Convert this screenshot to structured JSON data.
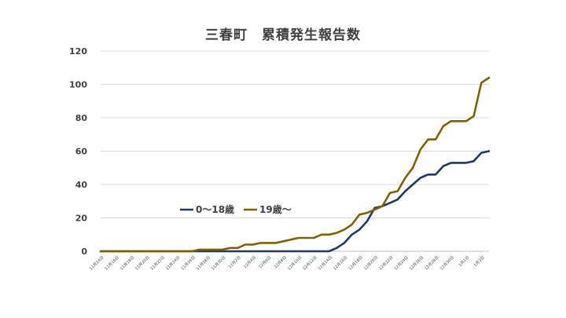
{
  "chart_data": {
    "type": "line",
    "title": "三春町　累積発生報告数",
    "xlabel": "",
    "ylabel": "",
    "ylim": [
      0,
      120
    ],
    "yticks": [
      0,
      20,
      40,
      60,
      80,
      100,
      120
    ],
    "grid": true,
    "legend_position": "middle-left",
    "x": [
      "11月14日",
      "11月15日",
      "11月16日",
      "11月17日",
      "11月18日",
      "11月19日",
      "11月20日",
      "11月21日",
      "11月22日",
      "11月23日",
      "11月24日",
      "11月25日",
      "11月26日",
      "11月27日",
      "11月28日",
      "11月29日",
      "11月30日",
      "12月1日",
      "12月2日",
      "12月3日",
      "12月4日",
      "12月5日",
      "12月6日",
      "12月7日",
      "12月8日",
      "12月9日",
      "12月10日",
      "12月11日",
      "12月12日",
      "12月13日",
      "12月14日",
      "12月15日",
      "12月16日",
      "12月17日",
      "12月18日",
      "12月19日",
      "12月20日",
      "12月21日",
      "12月22日",
      "12月23日",
      "12月24日",
      "12月25日",
      "12月26日",
      "12月27日",
      "12月28日",
      "12月29日",
      "12月30日",
      "12月31日",
      "1月1日",
      "1月2日",
      "1月3日",
      "1月4日"
    ],
    "x_tick_labels": [
      "11月14日",
      "11月16日",
      "11月18日",
      "11月20日",
      "11月22日",
      "11月24日",
      "11月26日",
      "11月28日",
      "11月30日",
      "12月2日",
      "12月4日",
      "12月6日",
      "12月8日",
      "12月10日",
      "12月12日",
      "12月14日",
      "12月16日",
      "12月18日",
      "12月20日",
      "12月22日",
      "12月24日",
      "12月26日",
      "12月28日",
      "12月30日",
      "1月1日",
      "1月3日"
    ],
    "series": [
      {
        "name": "0～18歳",
        "color": "#1f3864",
        "values": [
          0,
          0,
          0,
          0,
          0,
          0,
          0,
          0,
          0,
          0,
          0,
          0,
          0,
          0,
          0,
          0,
          0,
          0,
          0,
          0,
          0,
          0,
          0,
          0,
          0,
          0,
          0,
          0,
          0,
          0,
          0,
          2,
          5,
          10,
          13,
          18,
          26,
          27,
          29,
          31,
          36,
          40,
          44,
          46,
          46,
          51,
          53,
          53,
          53,
          54,
          59,
          60
        ]
      },
      {
        "name": "19歳～",
        "color": "#7f6000",
        "values": [
          0,
          0,
          0,
          0,
          0,
          0,
          0,
          0,
          0,
          0,
          0,
          0,
          0,
          1,
          1,
          1,
          1,
          2,
          2,
          4,
          4,
          5,
          5,
          5,
          6,
          7,
          8,
          8,
          8,
          10,
          10,
          11,
          13,
          16,
          22,
          23,
          25,
          27,
          35,
          36,
          44,
          50,
          61,
          67,
          67,
          75,
          78,
          78,
          78,
          81,
          101,
          104
        ]
      }
    ]
  }
}
